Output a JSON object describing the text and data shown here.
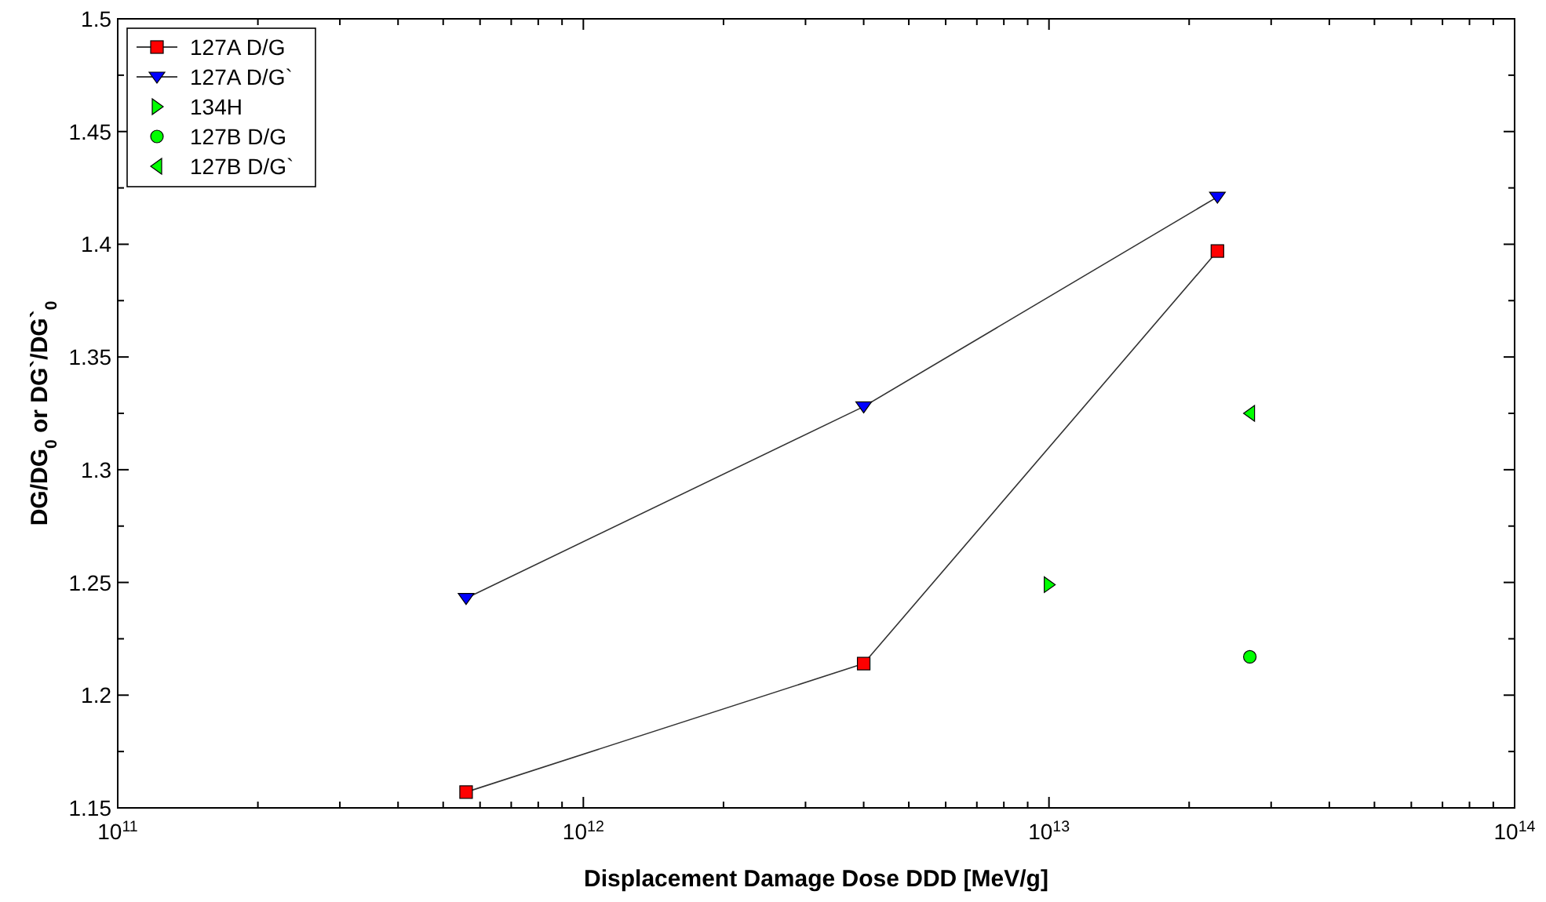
{
  "chart_data": {
    "type": "line",
    "xlabel": "Displacement Damage Dose DDD [MeV/g]",
    "ylabel": "DG/DG$_{0}$ or DG`/DG`$_{0}$",
    "log": "x",
    "grid": false,
    "legend": "top left",
    "xlim": [
      100000000000.0,
      100000000000000.0
    ],
    "xticks": [
      {
        "value": 100000000000.0,
        "label": "10$^{11}$"
      },
      {
        "value": 1000000000000.0,
        "label": "10$^{12}$"
      },
      {
        "value": 10000000000000.0,
        "label": "10$^{13}$"
      },
      {
        "value": 100000000000000.0,
        "label": "10$^{14}$"
      }
    ],
    "ylim": [
      1.15,
      1.5
    ],
    "yticks": [
      1.15,
      1.2,
      1.25,
      1.3,
      1.35,
      1.4,
      1.45,
      1.5
    ],
    "series": [
      {
        "name": "127A D/G",
        "marker": "square",
        "color": "#ff0000",
        "x": [
          560000000000.0,
          4000000000000.0,
          23000000000000.0
        ],
        "values": [
          1.157,
          1.214,
          1.397
        ]
      },
      {
        "name": "127A D/G`",
        "marker": "triangle-down",
        "color": "#0000ff",
        "x": [
          560000000000.0,
          4000000000000.0,
          23000000000000.0
        ],
        "values": [
          1.243,
          1.328,
          1.421
        ]
      },
      {
        "name": "134H",
        "type": "scatter",
        "marker": "triangle-right",
        "color": "#00ff00",
        "x": [
          10000000000000.0
        ],
        "values": [
          1.249
        ]
      },
      {
        "name": "127B D/G",
        "type": "scatter",
        "marker": "circle",
        "color": "#00ff00",
        "x": [
          27000000000000.0
        ],
        "values": [
          1.217
        ]
      },
      {
        "name": "127B D/G`",
        "type": "scatter",
        "marker": "triangle-left",
        "color": "#00ff00",
        "x": [
          27000000000000.0
        ],
        "values": [
          1.325
        ]
      }
    ]
  }
}
